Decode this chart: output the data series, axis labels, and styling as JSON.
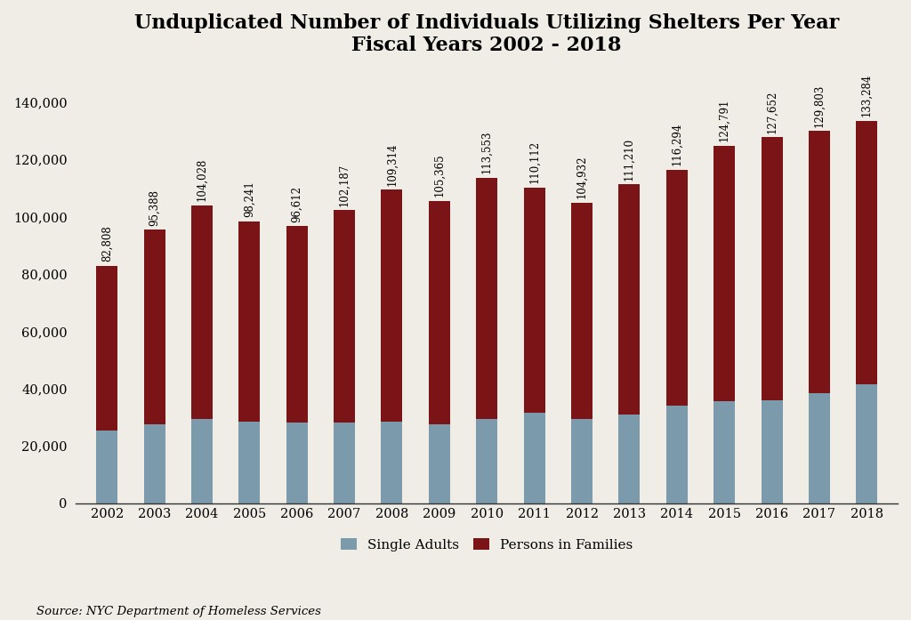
{
  "years": [
    2002,
    2003,
    2004,
    2005,
    2006,
    2007,
    2008,
    2009,
    2010,
    2011,
    2012,
    2013,
    2014,
    2015,
    2016,
    2017,
    2018
  ],
  "totals": [
    82808,
    95388,
    104028,
    98241,
    96612,
    102187,
    109314,
    105365,
    113553,
    110112,
    104932,
    111210,
    116294,
    124791,
    127652,
    129803,
    133284
  ],
  "single_adults": [
    25500,
    27500,
    29500,
    28500,
    28000,
    28000,
    28500,
    27500,
    29500,
    31500,
    29500,
    31000,
    34000,
    35500,
    36000,
    38500,
    41500
  ],
  "color_single": "#7b9aab",
  "color_families": "#7b1417",
  "title_line1": "Unduplicated Number of Individuals Utilizing Shelters Per Year",
  "title_line2": "Fiscal Years 2002 - 2018",
  "legend_single": "Single Adults",
  "legend_families": "Persons in Families",
  "source": "Source: NYC Department of Homeless Services",
  "ylim": [
    0,
    150000
  ],
  "yticks": [
    0,
    20000,
    40000,
    60000,
    80000,
    100000,
    120000,
    140000
  ],
  "background_color": "#f0ede6",
  "title_fontsize": 16,
  "label_fontsize": 8.5,
  "tick_fontsize": 10.5,
  "legend_fontsize": 11,
  "source_fontsize": 9.5,
  "bar_width": 0.45
}
